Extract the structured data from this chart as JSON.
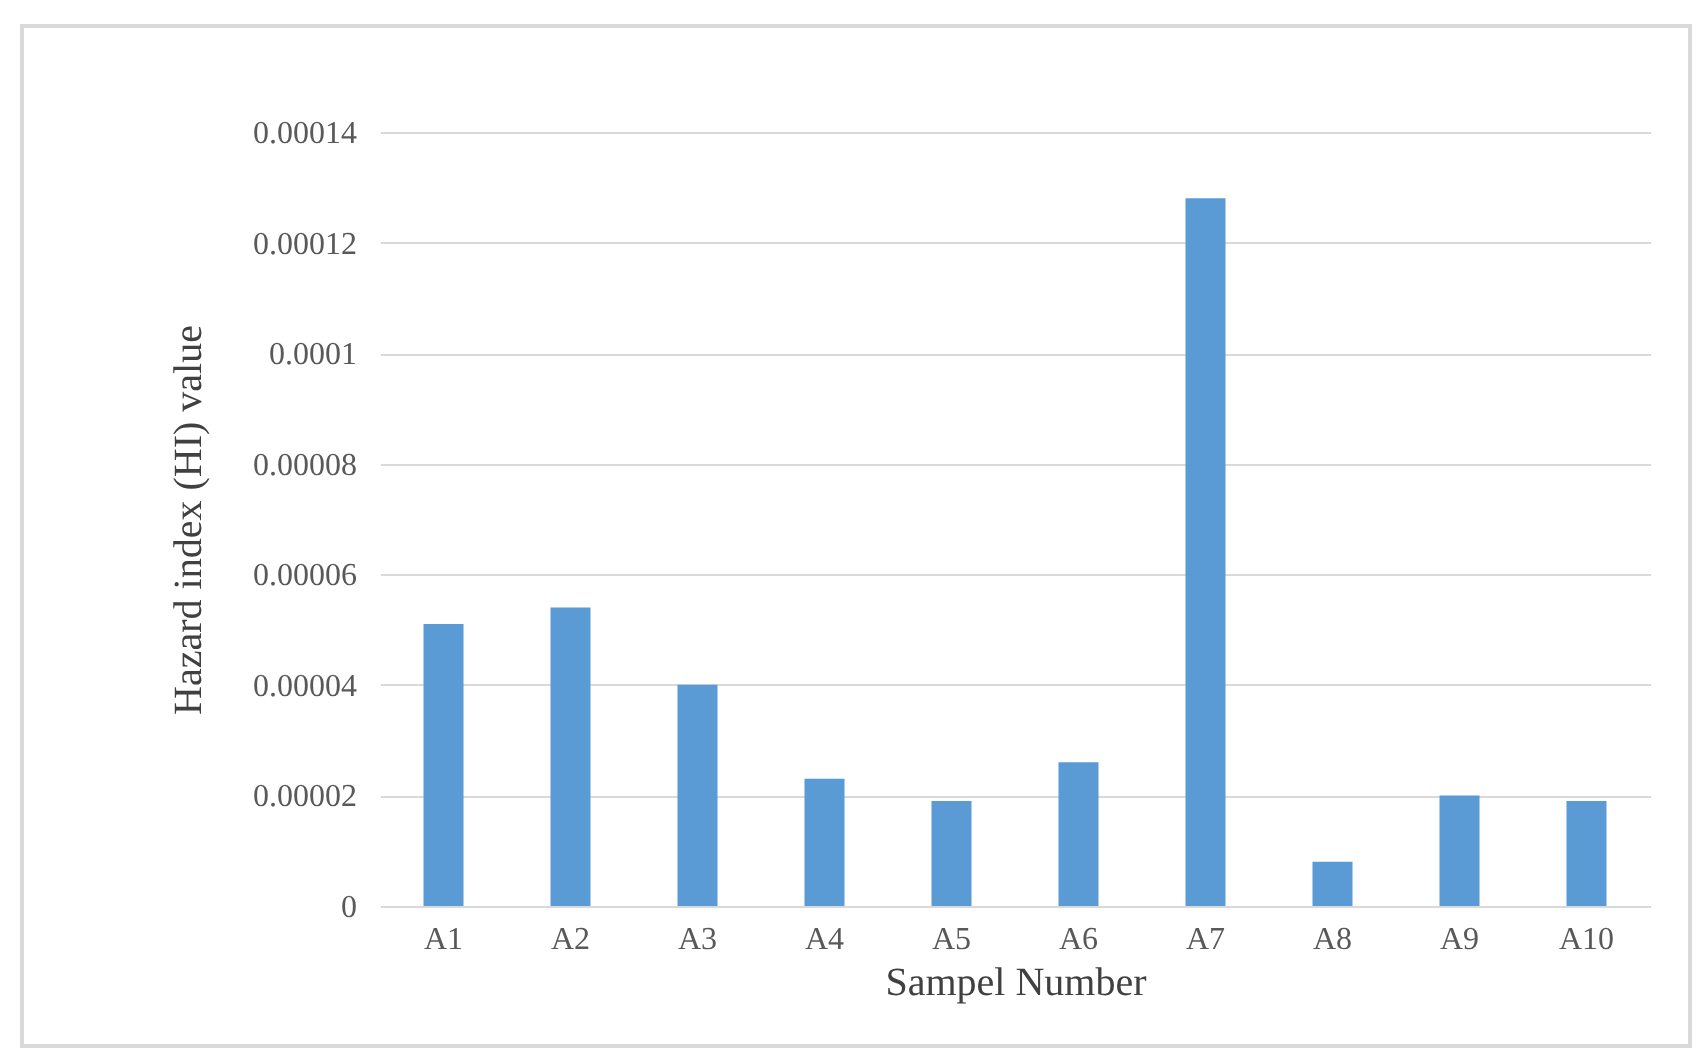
{
  "chart_data": {
    "type": "bar",
    "xlabel": "Sampel Number",
    "ylabel": "Hazard index (HI) value",
    "categories": [
      "A1",
      "A2",
      "A3",
      "A4",
      "A5",
      "A6",
      "A7",
      "A8",
      "A9",
      "A10"
    ],
    "values": [
      5.1e-05,
      5.4e-05,
      4e-05,
      2.3e-05,
      1.9e-05,
      2.6e-05,
      0.000128,
      8e-06,
      2e-05,
      1.9e-05
    ],
    "color": "#5b9bd5",
    "ylim": [
      0,
      0.00014
    ],
    "yticks": [
      0,
      {
        "value": 2e-05,
        "label": "0.00002"
      },
      {
        "value": 4e-05,
        "label": "0.00004"
      },
      {
        "value": 6e-05,
        "label": "0.00006"
      },
      {
        "value": 8e-05,
        "label": "0.00008"
      },
      0.0001,
      0.00012,
      0.00014
    ],
    "grid": "y"
  }
}
